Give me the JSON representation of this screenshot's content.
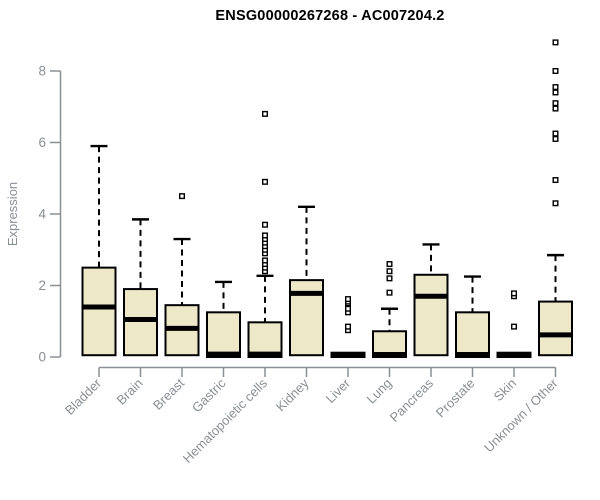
{
  "title": "ENSG00000267268 - AC007204.2",
  "colors": {
    "box_fill": "#EDE8C8",
    "box_border": "#000000",
    "median": "#000000",
    "whisker": "#000000",
    "outlier_stroke": "#000000",
    "outlier_fill": "#FFFFFF",
    "axis": "#8A8F94",
    "title_color": "#000000",
    "background": "#FFFFFF"
  },
  "chart_data": {
    "type": "boxplot",
    "title": "ENSG00000267268 - AC007204.2",
    "xlabel": "",
    "ylabel": "Expression",
    "ylim": [
      0,
      8.9
    ],
    "yticks": [
      0,
      2,
      4,
      6,
      8
    ],
    "grid": false,
    "legend": false,
    "categories": [
      "Bladder",
      "Brain",
      "Breast",
      "Gastric",
      "Hematopoietic cells",
      "Kidney",
      "Liver",
      "Lung",
      "Pancreas",
      "Prostate",
      "Skin",
      "Unknown / Other"
    ],
    "series": [
      {
        "category": "Bladder",
        "whisker_low": 0,
        "q1": 0.05,
        "median": 1.4,
        "q3": 2.5,
        "whisker_high": 5.9,
        "outliers": []
      },
      {
        "category": "Brain",
        "whisker_low": 0,
        "q1": 0.05,
        "median": 1.05,
        "q3": 1.9,
        "whisker_high": 3.85,
        "outliers": []
      },
      {
        "category": "Breast",
        "whisker_low": 0,
        "q1": 0.05,
        "median": 0.8,
        "q3": 1.45,
        "whisker_high": 3.3,
        "outliers": [
          4.5
        ]
      },
      {
        "category": "Gastric",
        "whisker_low": 0,
        "q1": 0.0,
        "median": 0.08,
        "q3": 1.25,
        "whisker_high": 2.1,
        "outliers": []
      },
      {
        "category": "Hematopoietic cells",
        "whisker_low": 0,
        "q1": 0.0,
        "median": 0.08,
        "q3": 0.97,
        "whisker_high": 2.27,
        "outliers": [
          2.4,
          2.5,
          2.6,
          2.7,
          2.9,
          3.0,
          3.1,
          3.2,
          3.3,
          3.4,
          3.7,
          4.9,
          6.8
        ]
      },
      {
        "category": "Kidney",
        "whisker_low": 0,
        "q1": 0.05,
        "median": 1.78,
        "q3": 2.15,
        "whisker_high": 4.2,
        "outliers": []
      },
      {
        "category": "Liver",
        "whisker_low": 0,
        "q1": 0.0,
        "median": 0.06,
        "q3": 0.12,
        "whisker_high": 0.12,
        "outliers": [
          0.75,
          0.85,
          1.25,
          1.35,
          1.5,
          1.55,
          1.62
        ]
      },
      {
        "category": "Lung",
        "whisker_low": 0,
        "q1": 0.0,
        "median": 0.07,
        "q3": 0.72,
        "whisker_high": 1.35,
        "outliers": [
          1.8,
          2.2,
          2.4,
          2.6
        ]
      },
      {
        "category": "Pancreas",
        "whisker_low": 0,
        "q1": 0.05,
        "median": 1.7,
        "q3": 2.3,
        "whisker_high": 3.15,
        "outliers": []
      },
      {
        "category": "Prostate",
        "whisker_low": 0,
        "q1": 0.0,
        "median": 0.07,
        "q3": 1.25,
        "whisker_high": 2.25,
        "outliers": []
      },
      {
        "category": "Skin",
        "whisker_low": 0,
        "q1": 0.0,
        "median": 0.06,
        "q3": 0.12,
        "whisker_high": 0.12,
        "outliers": [
          0.85,
          1.7,
          1.78
        ]
      },
      {
        "category": "Unknown / Other",
        "whisker_low": 0,
        "q1": 0.05,
        "median": 0.62,
        "q3": 1.55,
        "whisker_high": 2.85,
        "outliers": [
          4.3,
          4.95,
          6.1,
          6.25,
          6.95,
          7.1,
          7.4,
          7.55,
          8.0,
          8.8
        ]
      }
    ]
  }
}
